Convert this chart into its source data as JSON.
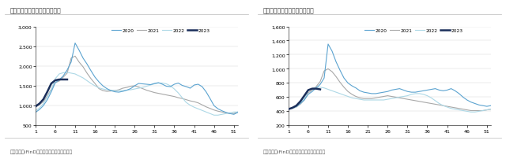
{
  "left_title": "图：五大钢材社会库存（万吨）",
  "right_title": "图：五大钢材钢厂库存（万吨）",
  "source_text": "资料来源：iFinD、国信证券经济研究所整理",
  "bg_color": "#ffffff",
  "plot_bg": "#ffffff",
  "colors": {
    "2020": "#5ba3d0",
    "2021": "#a8a8a8",
    "2022": "#add8e6",
    "2023": "#1a2e5a"
  },
  "left_ylim": [
    500,
    3000
  ],
  "left_yticks": [
    500,
    1000,
    1500,
    2000,
    2500,
    3000
  ],
  "left_ytick_labels": [
    "500",
    "1,000",
    "1,500",
    "2,000",
    "2,500",
    "3,000"
  ],
  "right_ylim": [
    200,
    1600
  ],
  "right_yticks": [
    200,
    400,
    600,
    800,
    1000,
    1200,
    1400,
    1600
  ],
  "right_ytick_labels": [
    "200",
    "400",
    "600",
    "800",
    "1,000",
    "1,200",
    "1,400",
    "1,600"
  ],
  "xticks": [
    1,
    6,
    11,
    16,
    21,
    26,
    31,
    36,
    41,
    46,
    51
  ],
  "left_2020": [
    830,
    900,
    1000,
    1150,
    1350,
    1580,
    1650,
    1750,
    1900,
    2100,
    2580,
    2400,
    2200,
    2050,
    1880,
    1720,
    1600,
    1500,
    1430,
    1380,
    1350,
    1340,
    1360,
    1390,
    1430,
    1500,
    1560,
    1550,
    1540,
    1530,
    1560,
    1580,
    1540,
    1490,
    1480,
    1540,
    1570,
    1510,
    1480,
    1440,
    1520,
    1540,
    1480,
    1350,
    1180,
    1000,
    920,
    870,
    830,
    800,
    780,
    830
  ],
  "left_2021": [
    960,
    1020,
    1100,
    1250,
    1420,
    1580,
    1620,
    1720,
    1820,
    2200,
    2250,
    2100,
    1980,
    1820,
    1680,
    1560,
    1430,
    1380,
    1360,
    1370,
    1380,
    1400,
    1440,
    1460,
    1490,
    1500,
    1470,
    1430,
    1390,
    1360,
    1330,
    1310,
    1290,
    1270,
    1250,
    1230,
    1200,
    1180,
    1150,
    1120,
    1100,
    1070,
    1020,
    970,
    930,
    890,
    860,
    840,
    820,
    800,
    800,
    840
  ],
  "left_2022": [
    870,
    940,
    1050,
    1220,
    1400,
    1680,
    1800,
    1830,
    1840,
    1820,
    1800,
    1750,
    1700,
    1630,
    1560,
    1500,
    1450,
    1420,
    1400,
    1390,
    1380,
    1380,
    1380,
    1390,
    1400,
    1420,
    1440,
    1460,
    1490,
    1520,
    1550,
    1570,
    1570,
    1550,
    1500,
    1420,
    1320,
    1200,
    1080,
    1010,
    960,
    920,
    880,
    840,
    800,
    760,
    760,
    780,
    800,
    820,
    840,
    840
  ],
  "left_2023_x": [
    1,
    2,
    3,
    4,
    5,
    6,
    7,
    8,
    9
  ],
  "left_2023_y": [
    980,
    1050,
    1160,
    1350,
    1560,
    1640,
    1660,
    1660,
    1660
  ],
  "right_2020": [
    430,
    450,
    470,
    510,
    560,
    640,
    680,
    730,
    780,
    870,
    1350,
    1250,
    1100,
    980,
    870,
    800,
    760,
    730,
    690,
    670,
    660,
    650,
    650,
    660,
    670,
    680,
    700,
    710,
    720,
    700,
    680,
    670,
    670,
    680,
    690,
    700,
    710,
    720,
    700,
    690,
    700,
    720,
    690,
    650,
    600,
    560,
    530,
    510,
    490,
    480,
    470,
    480
  ],
  "right_2021": [
    430,
    440,
    460,
    500,
    560,
    660,
    700,
    750,
    820,
    970,
    1000,
    960,
    890,
    810,
    740,
    680,
    640,
    610,
    590,
    580,
    580,
    580,
    590,
    600,
    610,
    620,
    610,
    600,
    590,
    580,
    570,
    560,
    550,
    540,
    530,
    520,
    510,
    500,
    490,
    480,
    470,
    460,
    450,
    440,
    430,
    420,
    410,
    410,
    410,
    410,
    420,
    430
  ],
  "right_2022": [
    430,
    440,
    460,
    510,
    580,
    690,
    720,
    740,
    740,
    730,
    710,
    690,
    670,
    650,
    630,
    610,
    590,
    580,
    570,
    560,
    560,
    560,
    560,
    560,
    560,
    570,
    580,
    590,
    600,
    610,
    620,
    640,
    650,
    650,
    640,
    620,
    590,
    550,
    510,
    480,
    460,
    440,
    430,
    420,
    410,
    400,
    390,
    390,
    400,
    410,
    420,
    430
  ],
  "right_2023_x": [
    1,
    2,
    3,
    4,
    5,
    6,
    7,
    8,
    9
  ],
  "right_2023_y": [
    430,
    450,
    480,
    540,
    620,
    700,
    720,
    720,
    710
  ]
}
